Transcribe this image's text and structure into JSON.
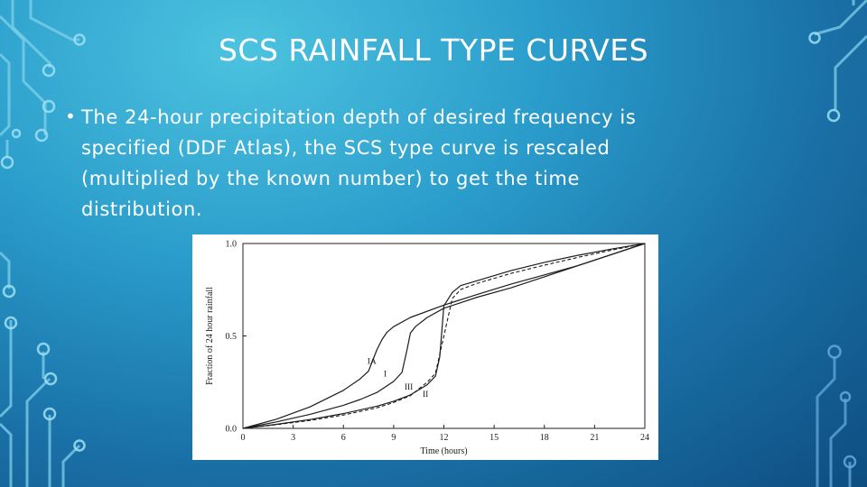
{
  "slide": {
    "title": "SCS RAINFALL TYPE CURVES",
    "bullet": "The 24-hour precipitation depth of desired frequency is specified (DDF Atlas), the SCS type curve is rescaled (multiplied by the known number) to get the time distribution."
  },
  "chart_data": {
    "type": "line",
    "xlabel": "Time (hours)",
    "ylabel": "Fraction of 24 hour rainfall",
    "xlim": [
      0,
      24
    ],
    "ylim": [
      0,
      1
    ],
    "x_ticks": [
      "0",
      "3",
      "6",
      "9",
      "12",
      "15",
      "18",
      "21",
      "24"
    ],
    "y_ticks": [
      "0.0",
      "0.5",
      "1.0"
    ],
    "grid": false,
    "series": [
      {
        "name": "I",
        "label_at": [
          8.5,
          0.28
        ],
        "x": [
          0,
          2,
          4,
          6,
          7,
          8,
          9,
          9.5,
          9.8,
          10,
          10.3,
          11,
          12,
          14,
          16,
          18,
          20,
          22,
          24
        ],
        "y": [
          0,
          0.035,
          0.076,
          0.125,
          0.156,
          0.194,
          0.254,
          0.303,
          0.425,
          0.515,
          0.55,
          0.6,
          0.65,
          0.71,
          0.76,
          0.82,
          0.88,
          0.94,
          1.0
        ]
      },
      {
        "name": "IA",
        "label_at": [
          7.7,
          0.35
        ],
        "x": [
          0,
          2,
          4,
          6,
          7,
          7.5,
          8,
          8.3,
          8.6,
          9,
          10,
          12,
          14,
          16,
          18,
          20,
          22,
          24
        ],
        "y": [
          0,
          0.05,
          0.116,
          0.206,
          0.268,
          0.31,
          0.425,
          0.48,
          0.52,
          0.55,
          0.6,
          0.667,
          0.725,
          0.78,
          0.83,
          0.88,
          0.94,
          1.0
        ]
      },
      {
        "name": "II",
        "label_at": [
          10.9,
          0.17
        ],
        "x": [
          0,
          2,
          4,
          6,
          8,
          9,
          10,
          11,
          11.5,
          11.75,
          12,
          12.5,
          13,
          14,
          16,
          18,
          20,
          22,
          24
        ],
        "y": [
          0,
          0.022,
          0.048,
          0.08,
          0.12,
          0.147,
          0.181,
          0.236,
          0.283,
          0.387,
          0.663,
          0.735,
          0.772,
          0.799,
          0.853,
          0.898,
          0.936,
          0.97,
          1.0
        ]
      },
      {
        "name": "III",
        "label_at": [
          9.9,
          0.21
        ],
        "x": [
          0,
          2,
          4,
          6,
          8,
          9,
          10,
          11,
          11.5,
          11.75,
          12,
          12.5,
          13,
          14,
          16,
          18,
          20,
          22,
          24
        ],
        "y": [
          0,
          0.02,
          0.043,
          0.072,
          0.111,
          0.14,
          0.177,
          0.25,
          0.298,
          0.4,
          0.5,
          0.702,
          0.751,
          0.785,
          0.838,
          0.883,
          0.925,
          0.964,
          1.0
        ]
      }
    ]
  }
}
